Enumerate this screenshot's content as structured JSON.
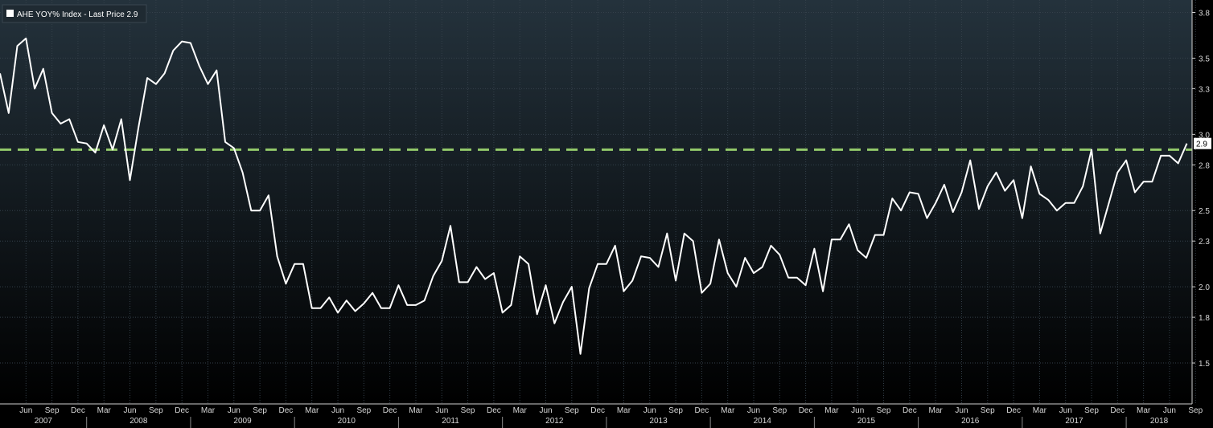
{
  "legend": {
    "label": "AHE YOY% Index - Last Price 2.9"
  },
  "last_price_label": "2.9",
  "colors": {
    "series": "#ffffff",
    "reference": "#92c86a",
    "background_top": "#24323c",
    "background_bottom": "#000000",
    "grid": "#34404a"
  },
  "chart_data": {
    "type": "line",
    "x_start": "2007-03",
    "frequency": "monthly",
    "ylim": [
      1.3,
      3.85
    ],
    "y_ticks": [
      1.5,
      1.8,
      2.0,
      2.3,
      2.5,
      2.8,
      3.0,
      3.3,
      3.5,
      3.8
    ],
    "reference_line": 2.9,
    "grid": true,
    "month_ticks": [
      "Jun",
      "Sep",
      "Dec",
      "Mar",
      "Jun",
      "Sep",
      "Dec",
      "Mar",
      "Jun",
      "Sep",
      "Dec",
      "Mar",
      "Jun",
      "Sep",
      "Dec",
      "Mar",
      "Jun",
      "Sep",
      "Dec",
      "Mar",
      "Jun",
      "Sep",
      "Dec",
      "Mar",
      "Jun",
      "Sep",
      "Dec",
      "Mar",
      "Jun",
      "Sep",
      "Dec",
      "Mar",
      "Jun",
      "Sep",
      "Dec",
      "Mar",
      "Jun",
      "Sep",
      "Dec",
      "Mar",
      "Jun",
      "Sep",
      "Dec",
      "Mar",
      "Jun",
      "Sep"
    ],
    "years": [
      "2007",
      "2008",
      "2009",
      "2010",
      "2011",
      "2012",
      "2013",
      "2014",
      "2015",
      "2016",
      "2017",
      "2018"
    ],
    "series": [
      {
        "name": "AHE YOY% Index",
        "values": [
          3.4,
          3.14,
          3.58,
          3.63,
          3.3,
          3.43,
          3.14,
          3.07,
          3.1,
          2.95,
          2.94,
          2.88,
          3.06,
          2.9,
          3.1,
          2.7,
          3.05,
          3.37,
          3.33,
          3.4,
          3.55,
          3.61,
          3.6,
          3.45,
          3.33,
          3.42,
          2.95,
          2.91,
          2.75,
          2.5,
          2.5,
          2.6,
          2.2,
          2.02,
          2.15,
          2.15,
          1.86,
          1.86,
          1.93,
          1.83,
          1.91,
          1.84,
          1.89,
          1.96,
          1.86,
          1.86,
          2.01,
          1.88,
          1.88,
          1.91,
          2.07,
          2.17,
          2.4,
          2.03,
          2.03,
          2.13,
          2.05,
          2.09,
          1.83,
          1.88,
          2.2,
          2.15,
          1.82,
          2.01,
          1.76,
          1.9,
          2.0,
          1.56,
          1.99,
          2.15,
          2.15,
          2.27,
          1.97,
          2.04,
          2.2,
          2.19,
          2.13,
          2.35,
          2.04,
          2.35,
          2.3,
          1.96,
          2.02,
          2.31,
          2.09,
          2.0,
          2.19,
          2.09,
          2.13,
          2.27,
          2.21,
          2.06,
          2.06,
          2.01,
          2.25,
          1.97,
          2.31,
          2.31,
          2.41,
          2.24,
          2.19,
          2.34,
          2.34,
          2.58,
          2.5,
          2.62,
          2.61,
          2.45,
          2.55,
          2.67,
          2.49,
          2.62,
          2.83,
          2.51,
          2.66,
          2.75,
          2.63,
          2.7,
          2.45,
          2.79,
          2.61,
          2.57,
          2.5,
          2.55,
          2.55,
          2.66,
          2.9,
          2.35,
          2.55,
          2.75,
          2.83,
          2.62,
          2.69,
          2.69,
          2.86,
          2.86,
          2.81,
          2.94
        ]
      }
    ]
  }
}
